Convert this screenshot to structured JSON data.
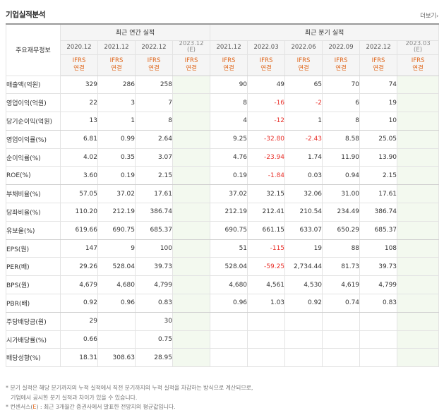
{
  "header": {
    "title": "기업실적분석",
    "more_label": "더보기",
    "more_arrow": "›"
  },
  "table": {
    "corner_label": "주요재무정보",
    "groups": {
      "annual": "최근 연간 실적",
      "quarter": "최근 분기 실적"
    },
    "columns": [
      {
        "period": "2020.12",
        "est": false
      },
      {
        "period": "2021.12",
        "est": false
      },
      {
        "period": "2022.12",
        "est": false
      },
      {
        "period": "2023.12",
        "est": true,
        "est_mark": "(E)"
      },
      {
        "period": "2021.12",
        "est": false
      },
      {
        "period": "2022.03",
        "est": false
      },
      {
        "period": "2022.06",
        "est": false
      },
      {
        "period": "2022.09",
        "est": false
      },
      {
        "period": "2022.12",
        "est": false
      },
      {
        "period": "2023.03",
        "est": true,
        "est_mark": "(E)"
      }
    ],
    "ifrs_line1": "IFRS",
    "ifrs_line2": "연결",
    "rows": [
      {
        "label": "매출액(억원)",
        "values": [
          "329",
          "286",
          "258",
          "",
          "90",
          "49",
          "65",
          "70",
          "74",
          ""
        ]
      },
      {
        "label": "영업이익(억원)",
        "values": [
          "22",
          "3",
          "7",
          "",
          "8",
          "-16",
          "-2",
          "6",
          "19",
          ""
        ]
      },
      {
        "label": "당기순이익(억원)",
        "values": [
          "13",
          "1",
          "8",
          "",
          "4",
          "-12",
          "1",
          "8",
          "10",
          ""
        ]
      },
      {
        "label": "영업이익률(%)",
        "values": [
          "6.81",
          "0.99",
          "2.64",
          "",
          "9.25",
          "-32.80",
          "-2.43",
          "8.58",
          "25.05",
          ""
        ]
      },
      {
        "label": "순이익률(%)",
        "values": [
          "4.02",
          "0.35",
          "3.07",
          "",
          "4.76",
          "-23.94",
          "1.74",
          "11.90",
          "13.90",
          ""
        ]
      },
      {
        "label": "ROE(%)",
        "values": [
          "3.60",
          "0.19",
          "2.15",
          "",
          "0.19",
          "-1.84",
          "0.03",
          "0.94",
          "2.15",
          ""
        ]
      },
      {
        "label": "부채비율(%)",
        "values": [
          "57.05",
          "37.02",
          "17.61",
          "",
          "37.02",
          "32.15",
          "32.06",
          "31.00",
          "17.61",
          ""
        ]
      },
      {
        "label": "당좌비율(%)",
        "values": [
          "110.20",
          "212.19",
          "386.74",
          "",
          "212.19",
          "212.41",
          "210.54",
          "234.49",
          "386.74",
          ""
        ]
      },
      {
        "label": "유보율(%)",
        "values": [
          "619.66",
          "690.75",
          "685.37",
          "",
          "690.75",
          "661.15",
          "633.07",
          "650.29",
          "685.37",
          ""
        ]
      },
      {
        "label": "EPS(원)",
        "values": [
          "147",
          "9",
          "100",
          "",
          "51",
          "-115",
          "19",
          "88",
          "108",
          ""
        ]
      },
      {
        "label": "PER(배)",
        "values": [
          "29.26",
          "528.04",
          "39.73",
          "",
          "528.04",
          "-59.25",
          "2,734.44",
          "81.73",
          "39.73",
          ""
        ]
      },
      {
        "label": "BPS(원)",
        "values": [
          "4,679",
          "4,680",
          "4,799",
          "",
          "4,680",
          "4,561",
          "4,530",
          "4,619",
          "4,799",
          ""
        ]
      },
      {
        "label": "PBR(배)",
        "values": [
          "0.92",
          "0.96",
          "0.83",
          "",
          "0.96",
          "1.03",
          "0.92",
          "0.74",
          "0.83",
          ""
        ]
      },
      {
        "label": "주당배당금(원)",
        "values": [
          "29",
          "",
          "30",
          "",
          "",
          "",
          "",
          "",
          "",
          ""
        ]
      },
      {
        "label": "시가배당률(%)",
        "values": [
          "0.66",
          "",
          "0.75",
          "",
          "",
          "",
          "",
          "",
          "",
          ""
        ]
      },
      {
        "label": "배당성향(%)",
        "values": [
          "18.31",
          "308.63",
          "28.95",
          "",
          "",
          "",
          "",
          "",
          "",
          ""
        ]
      }
    ]
  },
  "notes": {
    "line1": "* 분기 실적은 해당 분기까지의 누적 실적에서 직전 분기까지의 누적 실적을 차감하는 방식으로 계산되므로,",
    "line2": "기업에서 공시한 분기 실적과 차이가 있을 수 있습니다.",
    "line3_prefix": "* 컨센서스(",
    "line3_mark": "E",
    "line3_suffix": ") : 최근 3개월간 증권사에서 발표한 전망치의 평균값입니다."
  }
}
